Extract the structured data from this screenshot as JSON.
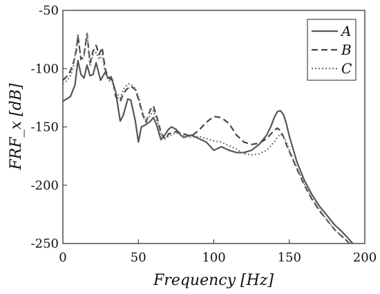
{
  "chart_data": {
    "type": "line",
    "title": "",
    "xlabel": "Frequency [Hz]",
    "ylabel": "FRF_x [dB]",
    "xlim": [
      0,
      200
    ],
    "ylim": [
      -250,
      -50
    ],
    "xticks": [
      "0",
      "50",
      "100",
      "150",
      "200"
    ],
    "yticks": [
      "-50",
      "-100",
      "-150",
      "-200",
      "-250"
    ],
    "grid": false,
    "legend": {
      "placement": "top-right"
    },
    "series": [
      {
        "name": "A",
        "color": "#555555",
        "style": "solid",
        "x": [
          0,
          5,
          8,
          10,
          12,
          14,
          16,
          18,
          20,
          22,
          25,
          28,
          30,
          32,
          35,
          38,
          40,
          43,
          45,
          48,
          50,
          52,
          55,
          58,
          60,
          62,
          65,
          68,
          70,
          72,
          75,
          78,
          80,
          85,
          90,
          95,
          100,
          105,
          110,
          115,
          120,
          125,
          130,
          135,
          138,
          140,
          142,
          144,
          146,
          148,
          150,
          155,
          160,
          165,
          170,
          175,
          180,
          185,
          190,
          192
        ],
        "y": [
          -128,
          -124,
          -114,
          -93,
          -105,
          -108,
          -97,
          -106,
          -105,
          -95,
          -110,
          -103,
          -108,
          -107,
          -120,
          -145,
          -140,
          -126,
          -127,
          -145,
          -163,
          -150,
          -148,
          -145,
          -142,
          -148,
          -161,
          -156,
          -152,
          -150,
          -152,
          -157,
          -159,
          -157,
          -160,
          -163,
          -170,
          -167,
          -170,
          -172,
          -172,
          -170,
          -165,
          -157,
          -149,
          -142,
          -137,
          -136,
          -139,
          -147,
          -158,
          -180,
          -196,
          -208,
          -218,
          -226,
          -234,
          -240,
          -247,
          -250
        ]
      },
      {
        "name": "B",
        "color": "#444444",
        "style": "dashed",
        "x": [
          0,
          3,
          5,
          7,
          9,
          10,
          12,
          14,
          16,
          18,
          20,
          22,
          24,
          26,
          28,
          30,
          33,
          35,
          38,
          40,
          42,
          45,
          48,
          50,
          53,
          55,
          58,
          60,
          63,
          65,
          68,
          70,
          75,
          80,
          85,
          90,
          95,
          100,
          105,
          110,
          115,
          120,
          125,
          130,
          135,
          140,
          142,
          144,
          146,
          148,
          150,
          155,
          160,
          165,
          170,
          175,
          180,
          185,
          190
        ],
        "y": [
          -110,
          -106,
          -102,
          -95,
          -84,
          -72,
          -92,
          -88,
          -70,
          -95,
          -85,
          -80,
          -88,
          -82,
          -100,
          -108,
          -110,
          -124,
          -128,
          -122,
          -118,
          -115,
          -118,
          -126,
          -140,
          -146,
          -135,
          -132,
          -145,
          -155,
          -161,
          -156,
          -154,
          -156,
          -158,
          -153,
          -146,
          -141,
          -142,
          -147,
          -157,
          -163,
          -165,
          -164,
          -160,
          -153,
          -151,
          -153,
          -158,
          -165,
          -171,
          -186,
          -200,
          -212,
          -222,
          -230,
          -238,
          -244,
          -250
        ]
      },
      {
        "name": "C",
        "color": "#777777",
        "style": "dotted",
        "x": [
          0,
          3,
          5,
          7,
          9,
          10,
          12,
          14,
          16,
          18,
          20,
          22,
          24,
          26,
          28,
          30,
          33,
          35,
          38,
          40,
          43,
          45,
          48,
          50,
          53,
          55,
          58,
          60,
          63,
          65,
          68,
          70,
          75,
          80,
          85,
          90,
          95,
          100,
          105,
          110,
          115,
          120,
          125,
          130,
          135,
          140,
          142,
          144,
          146,
          148,
          150,
          155,
          160,
          165,
          170,
          175,
          180,
          185,
          190
        ],
        "y": [
          -113,
          -110,
          -106,
          -98,
          -80,
          -70,
          -93,
          -90,
          -69,
          -98,
          -88,
          -86,
          -92,
          -88,
          -103,
          -110,
          -112,
          -120,
          -125,
          -118,
          -113,
          -113,
          -117,
          -124,
          -138,
          -145,
          -140,
          -136,
          -147,
          -157,
          -160,
          -158,
          -155,
          -157,
          -159,
          -158,
          -160,
          -162,
          -163,
          -166,
          -169,
          -173,
          -174,
          -173,
          -170,
          -163,
          -159,
          -156,
          -158,
          -163,
          -170,
          -185,
          -199,
          -211,
          -221,
          -230,
          -238,
          -244,
          -250
        ]
      }
    ]
  }
}
